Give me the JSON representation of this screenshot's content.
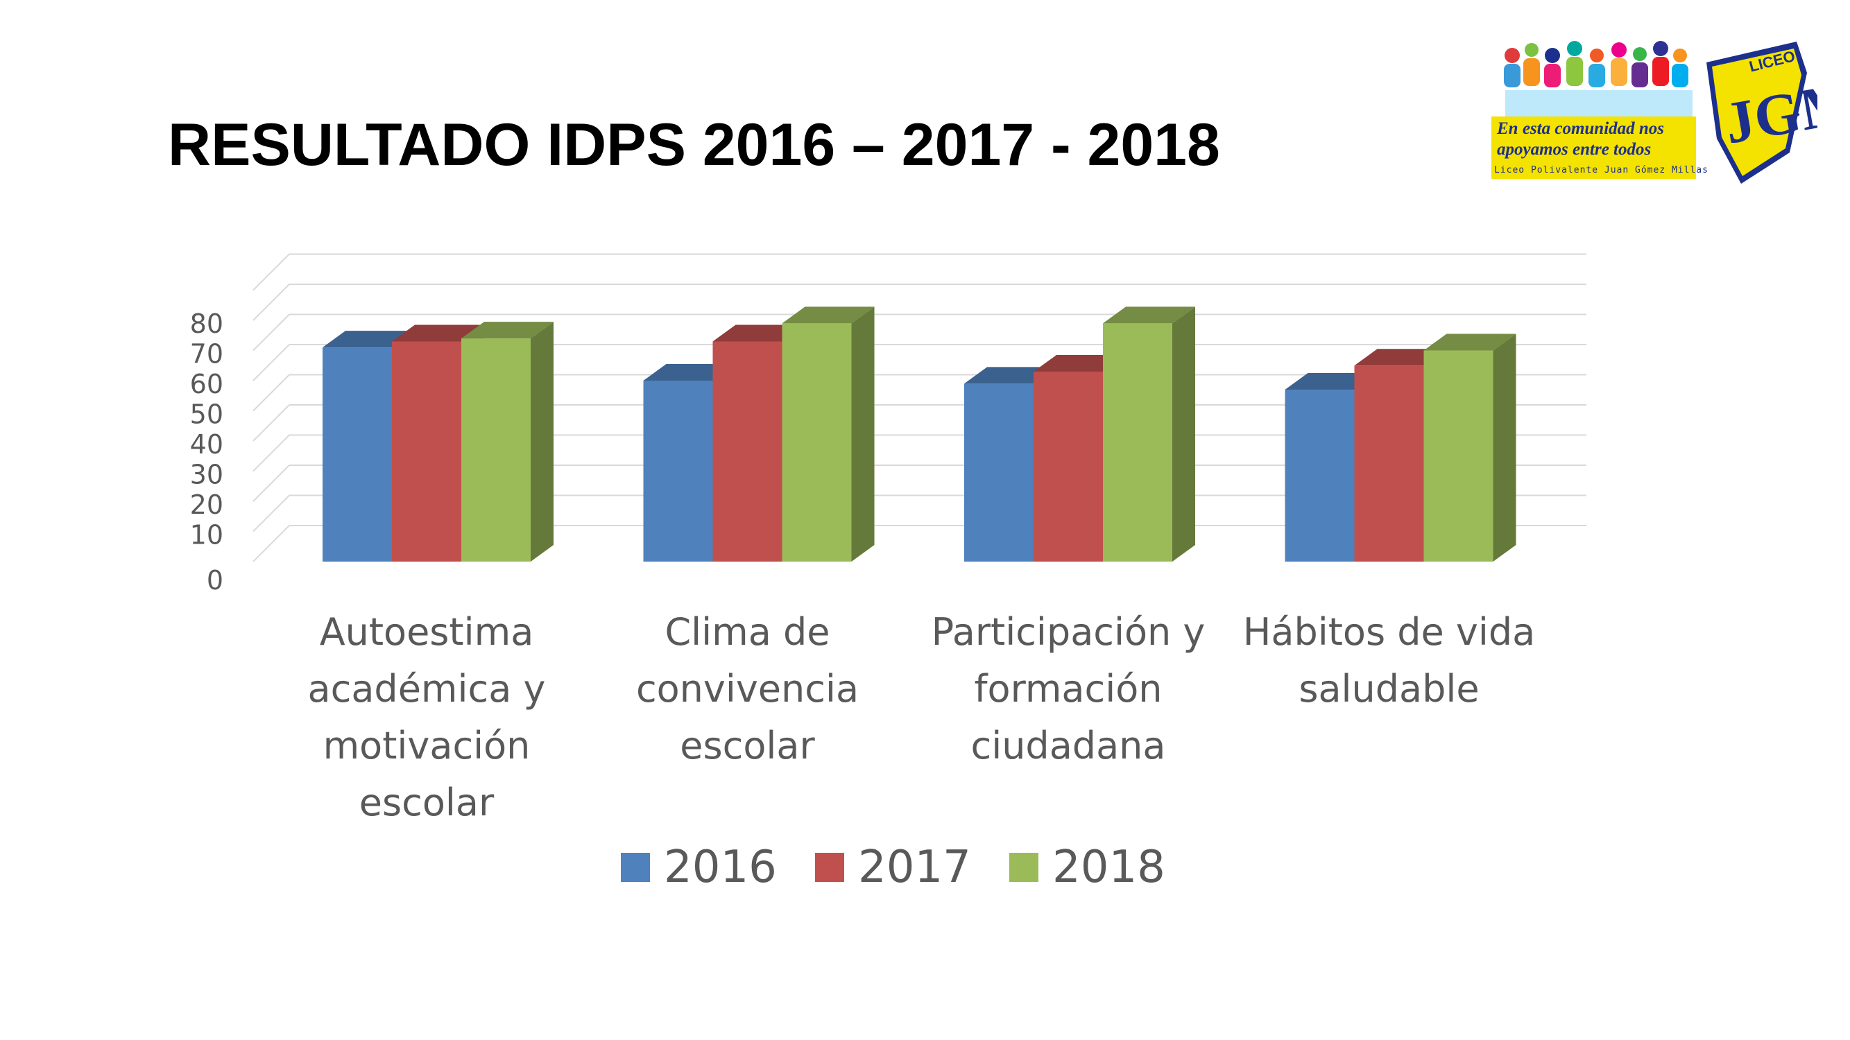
{
  "slide": {
    "title": "RESULTADO IDPS 2016 – 2017 - 2018"
  },
  "logo": {
    "shield_text": "LICEO",
    "motto_line1": "En esta comunidad nos",
    "motto_line2": "apoyamos entre todos",
    "school_name": "Liceo Polivalente Juan Gómez Millas"
  },
  "chart_data": {
    "type": "bar",
    "style": "3d-clustered-column",
    "categories": [
      [
        "Autoestima",
        "académica y",
        "motivación",
        "escolar"
      ],
      [
        "Clima de",
        "convivencia",
        "escolar"
      ],
      [
        "Participación y",
        "formación",
        "ciudadana"
      ],
      [
        "Hábitos de vida",
        "saludable"
      ]
    ],
    "series": [
      {
        "name": "2016",
        "color": "#4f81bd",
        "values": [
          71,
          60,
          59,
          57
        ]
      },
      {
        "name": "2017",
        "color": "#c0504d",
        "values": [
          73,
          73,
          63,
          65
        ]
      },
      {
        "name": "2018",
        "color": "#9bbb59",
        "values": [
          74,
          79,
          79,
          70
        ]
      }
    ],
    "yticks": [
      "0",
      "10",
      "20",
      "30",
      "40",
      "50",
      "60",
      "70",
      "80"
    ],
    "ylim": [
      0,
      90
    ],
    "grid": true,
    "legend": "bottom"
  }
}
